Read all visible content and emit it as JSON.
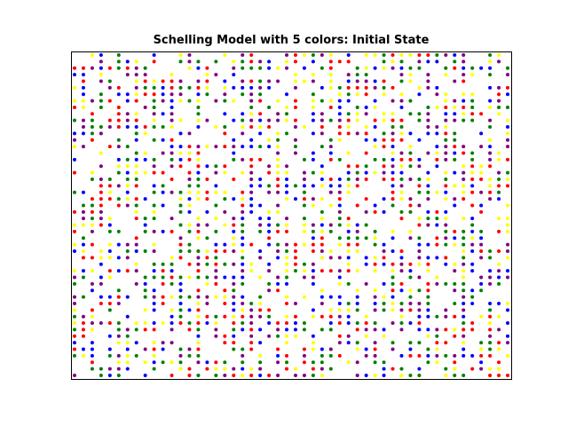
{
  "chart_data": {
    "type": "scatter",
    "title": "Schelling Model with 5 colors: Initial State",
    "xlabel": "",
    "ylabel": "",
    "grid": false,
    "axes_ticks": false,
    "grid_size": {
      "cols": 50,
      "rows": 50
    },
    "occupancy": 0.62,
    "seed": 20240517,
    "colors": {
      "red": "#ff0000",
      "blue": "#0000ff",
      "green": "#008000",
      "purple": "#800080",
      "yellow": "#ffff00"
    },
    "series": [
      {
        "color_key": "red"
      },
      {
        "color_key": "blue"
      },
      {
        "color_key": "green"
      },
      {
        "color_key": "purple"
      },
      {
        "color_key": "yellow"
      }
    ]
  }
}
